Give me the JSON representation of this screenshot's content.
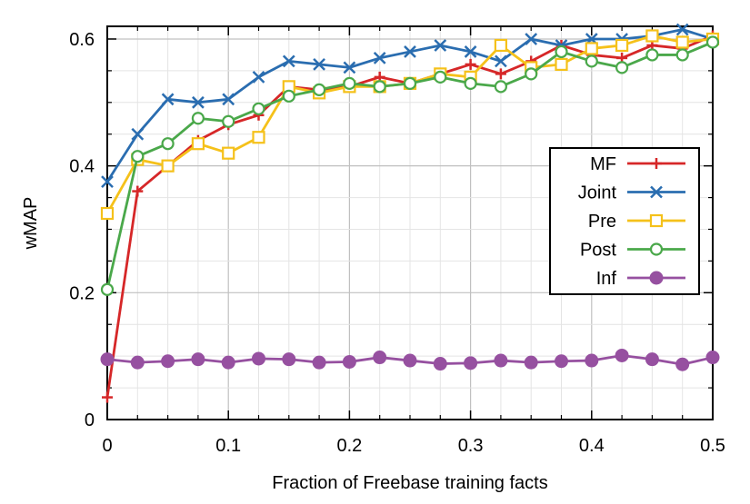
{
  "chart_data": {
    "type": "line",
    "xlabel": "Fraction of Freebase training facts",
    "ylabel": "wMAP",
    "xlim": [
      0,
      0.5
    ],
    "ylim": [
      0,
      0.62
    ],
    "x_ticks": [
      0,
      0.1,
      0.2,
      0.3,
      0.4,
      0.5
    ],
    "x_tick_labels": [
      "0",
      "0.1",
      "0.2",
      "0.3",
      "0.4",
      "0.5"
    ],
    "y_ticks": [
      0,
      0.2,
      0.4,
      0.6
    ],
    "y_tick_labels": [
      "0",
      "0.2",
      "0.4",
      "0.6"
    ],
    "grid": true,
    "legend_position": "right",
    "x": [
      0,
      0.025,
      0.05,
      0.075,
      0.1,
      0.125,
      0.15,
      0.175,
      0.2,
      0.225,
      0.25,
      0.275,
      0.3,
      0.325,
      0.35,
      0.375,
      0.4,
      0.425,
      0.45,
      0.475,
      0.5
    ],
    "series": [
      {
        "name": "MF",
        "color": "#d62728",
        "marker": "plus",
        "values": [
          0.035,
          0.36,
          0.4,
          0.44,
          0.465,
          0.48,
          0.525,
          0.52,
          0.525,
          0.54,
          0.53,
          0.545,
          0.56,
          0.545,
          0.565,
          0.59,
          0.575,
          0.57,
          0.59,
          0.585,
          0.605
        ]
      },
      {
        "name": "Joint",
        "color": "#2a6db0",
        "marker": "cross",
        "values": [
          0.375,
          0.45,
          0.505,
          0.5,
          0.505,
          0.54,
          0.565,
          0.56,
          0.555,
          0.57,
          0.58,
          0.59,
          0.58,
          0.565,
          0.6,
          0.59,
          0.6,
          0.6,
          0.605,
          0.615,
          0.6
        ]
      },
      {
        "name": "Pre",
        "color": "#f5c11a",
        "marker": "square",
        "values": [
          0.325,
          0.41,
          0.4,
          0.435,
          0.42,
          0.445,
          0.525,
          0.515,
          0.525,
          0.525,
          0.53,
          0.545,
          0.54,
          0.59,
          0.555,
          0.56,
          0.585,
          0.59,
          0.605,
          0.595,
          0.6
        ]
      },
      {
        "name": "Post",
        "color": "#4aa84a",
        "marker": "circle",
        "values": [
          0.205,
          0.415,
          0.435,
          0.475,
          0.47,
          0.49,
          0.51,
          0.52,
          0.53,
          0.525,
          0.53,
          0.54,
          0.53,
          0.525,
          0.545,
          0.58,
          0.565,
          0.555,
          0.575,
          0.575,
          0.595
        ]
      },
      {
        "name": "Inf",
        "color": "#9650a0",
        "marker": "filled-circle",
        "values": [
          0.095,
          0.09,
          0.092,
          0.095,
          0.09,
          0.096,
          0.095,
          0.09,
          0.091,
          0.098,
          0.093,
          0.088,
          0.089,
          0.093,
          0.09,
          0.092,
          0.093,
          0.101,
          0.095,
          0.087,
          0.098
        ]
      }
    ]
  }
}
